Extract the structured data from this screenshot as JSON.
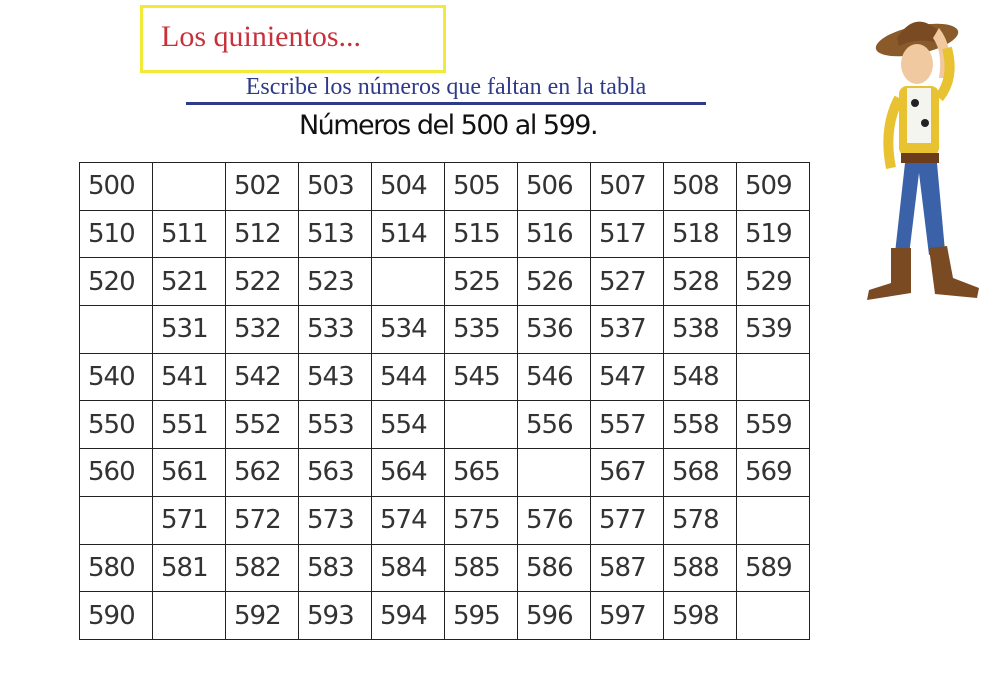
{
  "title": "Los quinientos...",
  "subtitle": "Escribe los números que faltan en la tabla",
  "heading": "Números del 500 al 599.",
  "illustration": "cowboy-character",
  "colors": {
    "title": "#c8303a",
    "title_border": "#f2ea3a",
    "subtitle": "#2e3a8a"
  },
  "table": {
    "rows": [
      [
        "500",
        "",
        "502",
        "503",
        "504",
        "505",
        "506",
        "507",
        "508",
        "509"
      ],
      [
        "510",
        "511",
        "512",
        "513",
        "514",
        "515",
        "516",
        "517",
        "518",
        "519"
      ],
      [
        "520",
        "521",
        "522",
        "523",
        "",
        "525",
        "526",
        "527",
        "528",
        "529"
      ],
      [
        "",
        "531",
        "532",
        "533",
        "534",
        "535",
        "536",
        "537",
        "538",
        "539"
      ],
      [
        "540",
        "541",
        "542",
        "543",
        "544",
        "545",
        "546",
        "547",
        "548",
        ""
      ],
      [
        "550",
        "551",
        "552",
        "553",
        "554",
        "",
        "556",
        "557",
        "558",
        "559"
      ],
      [
        "560",
        "561",
        "562",
        "563",
        "564",
        "565",
        "",
        "567",
        "568",
        "569"
      ],
      [
        "",
        "571",
        "572",
        "573",
        "574",
        "575",
        "576",
        "577",
        "578",
        ""
      ],
      [
        "580",
        "581",
        "582",
        "583",
        "584",
        "585",
        "586",
        "587",
        "588",
        "589"
      ],
      [
        "590",
        "",
        "592",
        "593",
        "594",
        "595",
        "596",
        "597",
        "598",
        ""
      ]
    ]
  }
}
